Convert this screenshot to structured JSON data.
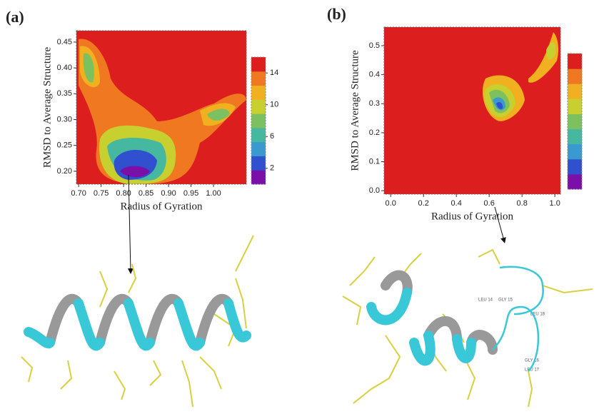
{
  "chart_data": [
    {
      "type": "contour",
      "label": "(a)",
      "x_label": "Radius of Gyration",
      "y_label": "RMSD to Average Structure",
      "xlim": [
        0.695,
        1.073
      ],
      "xticks": [
        {
          "value": 0.7,
          "label": "0.70"
        },
        {
          "value": 0.75,
          "label": "0.75"
        },
        {
          "value": 0.8,
          "label": "0.80"
        },
        {
          "value": 0.85,
          "label": "0.85"
        },
        {
          "value": 0.9,
          "label": "0.90"
        },
        {
          "value": 0.95,
          "label": "0.95"
        },
        {
          "value": 1.0,
          "label": "1.00"
        }
      ],
      "ylim": [
        0.175,
        0.472
      ],
      "yticks": [
        {
          "value": 0.2,
          "label": "0.20"
        },
        0.25,
        {
          "value": 0.3,
          "label": "0.30"
        },
        0.35,
        {
          "value": 0.4,
          "label": "0.40"
        },
        0.45
      ],
      "colorbar_lim": [
        0,
        16
      ],
      "colorbar_ticks": [
        2,
        6,
        10,
        14
      ]
    },
    {
      "type": "contour",
      "label": "(b)",
      "x_label": "Radius of Gyration",
      "y_label": "RMSD to Average Structure",
      "xlim": [
        -0.04,
        1.034
      ],
      "xticks": [
        {
          "value": 0,
          "label": "0.0"
        },
        0.2,
        0.4,
        0.6,
        0.8,
        {
          "value": 1,
          "label": "1.0"
        }
      ],
      "ylim": [
        -0.012,
        0.564
      ],
      "yticks": [
        {
          "value": 0,
          "label": "0.0"
        },
        0.1,
        0.2,
        0.3,
        0.4,
        0.5
      ],
      "structure_labels": [
        "LEU 14",
        "GLY 15",
        "LEU 18",
        "GLY 16",
        "LEU 17"
      ]
    }
  ]
}
